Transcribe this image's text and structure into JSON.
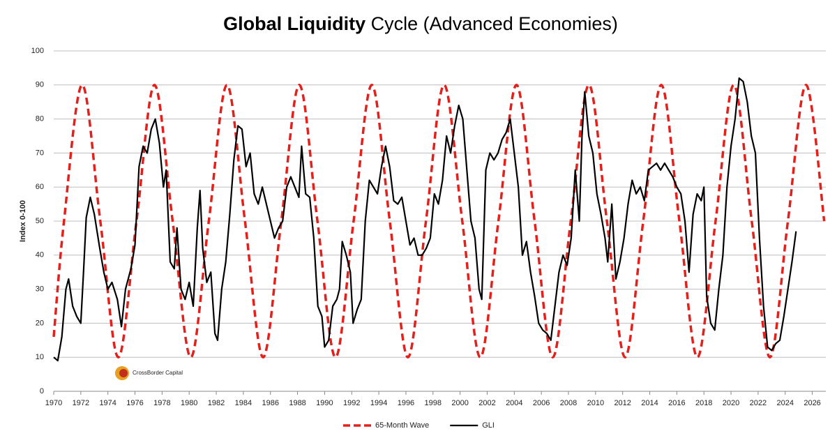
{
  "chart_data": {
    "type": "line",
    "title": [
      "Global Liquidity",
      "Cycle (Advanced Economies)"
    ],
    "y_label": "Index 0-100",
    "logo_text": "CrossBorder Capital",
    "xlim": [
      1970,
      2027
    ],
    "xticks": [
      1970,
      1972,
      1974,
      1976,
      1978,
      1980,
      1982,
      1984,
      1986,
      1988,
      1990,
      1992,
      1994,
      1996,
      1998,
      2000,
      2002,
      2004,
      2006,
      2008,
      2010,
      2012,
      2014,
      2016,
      2018,
      2020,
      2022,
      2024,
      2026
    ],
    "ylim": [
      0,
      100
    ],
    "yticks": [
      0,
      10,
      20,
      30,
      40,
      50,
      60,
      70,
      80,
      90,
      100
    ],
    "grid": true,
    "legend": "bottom",
    "series": [
      {
        "name": "65-Month Wave",
        "color": "#e3201b",
        "dashed": true,
        "smooth": true,
        "x": [
          1970,
          1970.76,
          1972.1,
          1973.44,
          1974.77,
          1976.11,
          1977.44,
          1978.78,
          1980.12,
          1981.45,
          1982.79,
          1984.12,
          1985.46,
          1986.8,
          1988.13,
          1989.47,
          1990.8,
          1992.14,
          1993.48,
          1994.81,
          1996.15,
          1997.48,
          1998.82,
          2000.16,
          2001.49,
          2002.83,
          2004.16,
          2005.5,
          2006.84,
          2008.17,
          2009.51,
          2010.84,
          2012.18,
          2013.52,
          2014.85,
          2016.19,
          2017.52,
          2018.86,
          2020.2,
          2021.53,
          2022.87,
          2024.2,
          2025.54,
          2026.88
        ],
        "values": [
          16,
          50,
          90,
          50,
          10,
          50,
          90,
          50,
          10,
          50,
          90,
          50,
          10,
          50,
          90,
          50,
          10,
          50,
          90,
          50,
          10,
          50,
          90,
          50,
          10,
          50,
          90,
          50,
          10,
          50,
          90,
          50,
          10,
          50,
          90,
          50,
          10,
          50,
          90,
          50,
          10,
          50,
          90,
          50
        ]
      },
      {
        "name": "GLI",
        "color": "#000000",
        "dashed": false,
        "smooth": false,
        "x": [
          1970.0,
          1970.3,
          1970.6,
          1970.9,
          1971.1,
          1971.4,
          1971.7,
          1972.0,
          1972.2,
          1972.4,
          1972.7,
          1973.0,
          1973.4,
          1973.7,
          1974.0,
          1974.3,
          1974.7,
          1975.0,
          1975.3,
          1975.7,
          1976.0,
          1976.3,
          1976.6,
          1976.9,
          1977.2,
          1977.5,
          1977.8,
          1978.1,
          1978.3,
          1978.6,
          1978.9,
          1979.1,
          1979.4,
          1979.7,
          1980.0,
          1980.3,
          1980.6,
          1980.8,
          1981.0,
          1981.3,
          1981.6,
          1981.9,
          1982.1,
          1982.4,
          1982.7,
          1983.0,
          1983.3,
          1983.6,
          1983.9,
          1984.2,
          1984.5,
          1984.8,
          1985.1,
          1985.4,
          1985.7,
          1986.0,
          1986.3,
          1986.6,
          1986.9,
          1987.2,
          1987.5,
          1987.8,
          1988.1,
          1988.3,
          1988.6,
          1988.9,
          1989.2,
          1989.5,
          1989.8,
          1990.0,
          1990.3,
          1990.6,
          1990.9,
          1991.1,
          1991.3,
          1991.6,
          1991.9,
          1992.1,
          1992.4,
          1992.7,
          1993.0,
          1993.3,
          1993.6,
          1993.9,
          1994.2,
          1994.5,
          1994.8,
          1995.1,
          1995.4,
          1995.7,
          1996.0,
          1996.3,
          1996.6,
          1996.9,
          1997.2,
          1997.5,
          1997.8,
          1998.1,
          1998.4,
          1998.7,
          1999.0,
          1999.3,
          1999.6,
          1999.9,
          2000.2,
          2000.5,
          2000.8,
          2001.1,
          2001.4,
          2001.6,
          2001.9,
          2002.2,
          2002.5,
          2002.8,
          2003.1,
          2003.4,
          2003.7,
          2004.0,
          2004.3,
          2004.6,
          2004.9,
          2005.2,
          2005.5,
          2005.8,
          2006.1,
          2006.4,
          2006.7,
          2007.0,
          2007.3,
          2007.6,
          2007.9,
          2008.2,
          2008.5,
          2008.8,
          2009.0,
          2009.2,
          2009.5,
          2009.8,
          2010.1,
          2010.4,
          2010.7,
          2010.9,
          2011.2,
          2011.5,
          2011.8,
          2012.1,
          2012.4,
          2012.7,
          2013.0,
          2013.3,
          2013.6,
          2013.9,
          2014.2,
          2014.5,
          2014.8,
          2015.1,
          2015.4,
          2015.7,
          2016.0,
          2016.3,
          2016.6,
          2016.9,
          2017.2,
          2017.5,
          2017.8,
          2018.0,
          2018.2,
          2018.5,
          2018.8,
          2019.1,
          2019.4,
          2019.7,
          2020.0,
          2020.3,
          2020.6,
          2020.9,
          2021.2,
          2021.5,
          2021.8,
          2022.1,
          2022.4,
          2022.7,
          2023.0,
          2023.3,
          2023.6,
          2023.9,
          2024.2,
          2024.5,
          2024.8
        ],
        "values": [
          10,
          9,
          16,
          30,
          33,
          25,
          22,
          20,
          35,
          51,
          57,
          52,
          42,
          35,
          30,
          32,
          27,
          19,
          30,
          36,
          43,
          66,
          72,
          70,
          77,
          80,
          73,
          60,
          65,
          38,
          36,
          48,
          30,
          27,
          32,
          25,
          48,
          59,
          42,
          32,
          35,
          17,
          15,
          30,
          38,
          52,
          68,
          78,
          77,
          66,
          70,
          58,
          55,
          60,
          55,
          50,
          45,
          48,
          50,
          60,
          63,
          60,
          57,
          72,
          58,
          57,
          45,
          25,
          22,
          13,
          15,
          25,
          27,
          30,
          44,
          40,
          35,
          20,
          24,
          27,
          50,
          62,
          60,
          58,
          66,
          72,
          66,
          56,
          55,
          57,
          50,
          43,
          45,
          40,
          40,
          42,
          45,
          58,
          55,
          62,
          75,
          70,
          78,
          84,
          80,
          65,
          50,
          45,
          30,
          27,
          65,
          70,
          68,
          70,
          74,
          76,
          80,
          70,
          60,
          40,
          44,
          35,
          28,
          20,
          18,
          17,
          15,
          25,
          35,
          40,
          37,
          45,
          65,
          50,
          75,
          88,
          75,
          70,
          58,
          52,
          45,
          38,
          55,
          33,
          38,
          45,
          55,
          62,
          58,
          60,
          56,
          65,
          66,
          67,
          65,
          67,
          65,
          63,
          60,
          58,
          50,
          35,
          52,
          58,
          56,
          60,
          28,
          20,
          18,
          30,
          40,
          60,
          72,
          80,
          92,
          91,
          85,
          75,
          70,
          45,
          25,
          13,
          12,
          14,
          15,
          22,
          30,
          38,
          47
        ]
      }
    ]
  }
}
